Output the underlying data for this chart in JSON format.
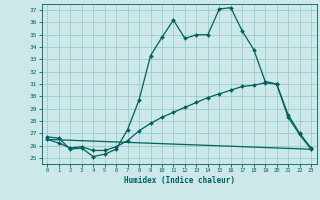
{
  "title": "",
  "xlabel": "Humidex (Indice chaleur)",
  "ylabel": "",
  "bg_color": "#cce8e8",
  "grid_color": "#99cccc",
  "line_color": "#006060",
  "xlim": [
    -0.5,
    23.5
  ],
  "ylim": [
    24.5,
    37.5
  ],
  "yticks": [
    25,
    26,
    27,
    28,
    29,
    30,
    31,
    32,
    33,
    34,
    35,
    36,
    37
  ],
  "xticks": [
    0,
    1,
    2,
    3,
    4,
    5,
    6,
    7,
    8,
    9,
    10,
    11,
    12,
    13,
    14,
    15,
    16,
    17,
    18,
    19,
    20,
    21,
    22,
    23
  ],
  "curve1_x": [
    0,
    1,
    2,
    3,
    4,
    5,
    6,
    7,
    8,
    9,
    10,
    11,
    12,
    13,
    14,
    15,
    16,
    17,
    18,
    19,
    20,
    21,
    22,
    23
  ],
  "curve1_y": [
    26.7,
    26.6,
    25.7,
    25.8,
    25.1,
    25.3,
    25.7,
    27.3,
    29.7,
    33.3,
    34.8,
    36.2,
    34.7,
    35.0,
    35.0,
    37.1,
    37.2,
    35.3,
    33.8,
    31.2,
    31.0,
    28.3,
    26.9,
    25.7
  ],
  "curve2_x": [
    0,
    1,
    2,
    3,
    4,
    5,
    6,
    7,
    8,
    9,
    10,
    11,
    12,
    13,
    14,
    15,
    16,
    17,
    18,
    19,
    20,
    21,
    22,
    23
  ],
  "curve2_y": [
    26.5,
    26.2,
    25.8,
    25.9,
    25.6,
    25.6,
    25.9,
    26.4,
    27.2,
    27.8,
    28.3,
    28.7,
    29.1,
    29.5,
    29.9,
    30.2,
    30.5,
    30.8,
    30.9,
    31.1,
    31.0,
    28.5,
    27.0,
    25.8
  ],
  "curve3_x": [
    0,
    23
  ],
  "curve3_y": [
    26.5,
    25.7
  ]
}
